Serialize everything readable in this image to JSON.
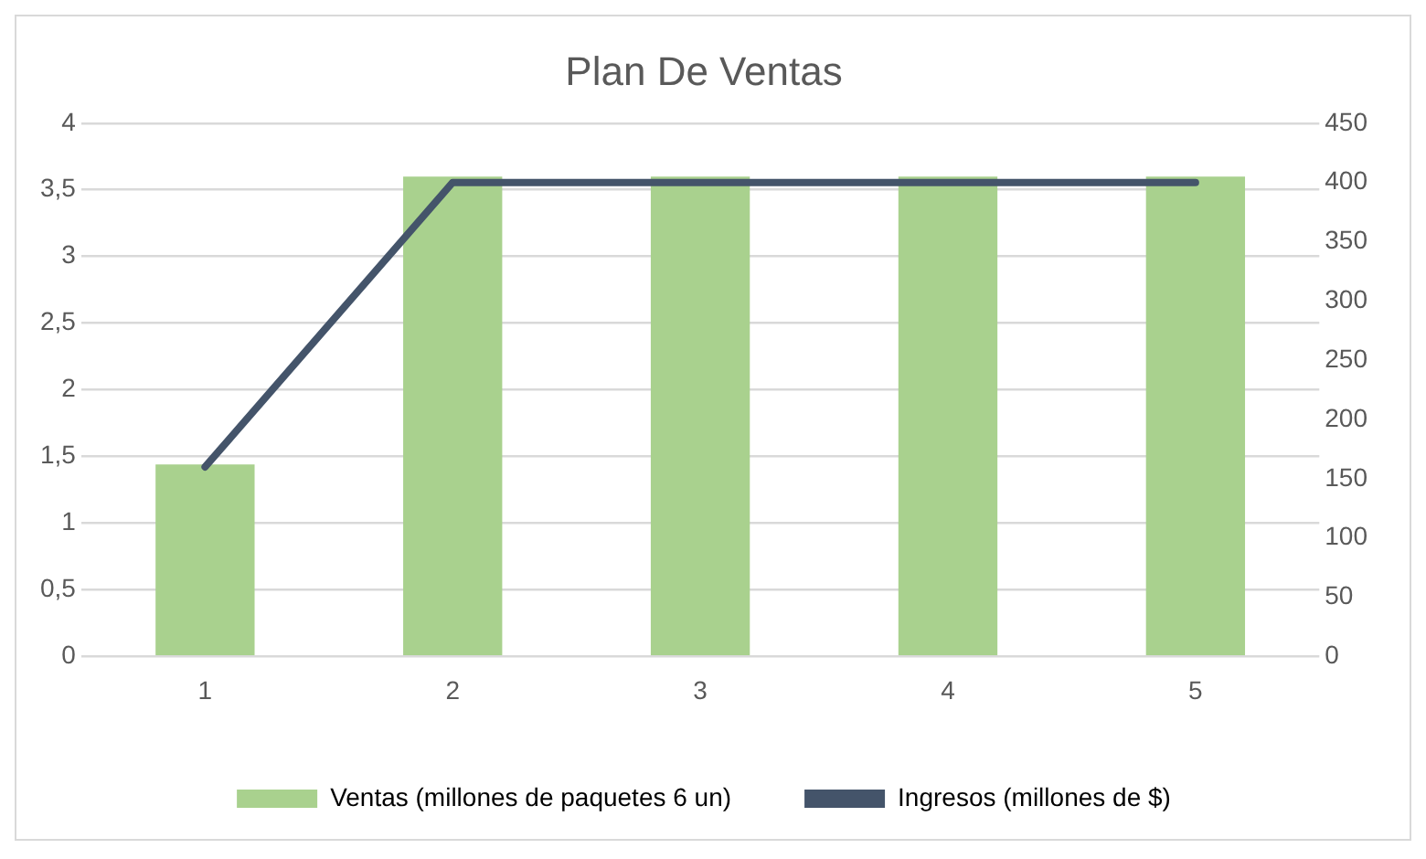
{
  "chart_data": {
    "type": "bar",
    "title": "Plan De Ventas",
    "categories": [
      "1",
      "2",
      "3",
      "4",
      "5"
    ],
    "series": [
      {
        "name": "Ventas (millones de paquetes 6 un)",
        "color": "#a9d18e",
        "values": [
          1.44,
          3.6,
          3.6,
          3.6,
          3.6
        ]
      },
      {
        "name": "Ingresos (millones de $)",
        "type": "line",
        "axis": "y2",
        "color": "#44546a",
        "values": [
          160,
          400,
          400,
          400,
          400
        ]
      }
    ],
    "ylim": [
      0,
      4
    ],
    "yticks": [
      0,
      {
        "value": 0.5,
        "label": "0,5"
      },
      1,
      {
        "value": 1.5,
        "label": "1,5"
      },
      2,
      {
        "value": 2.5,
        "label": "2,5"
      },
      3,
      {
        "value": 3.5,
        "label": "3,5"
      },
      4
    ],
    "y2lim": [
      0,
      450
    ],
    "y2ticks": [
      0,
      50,
      100,
      150,
      200,
      250,
      300,
      350,
      400,
      450
    ],
    "grid": "y",
    "legend": "bottom",
    "marker": "none"
  }
}
